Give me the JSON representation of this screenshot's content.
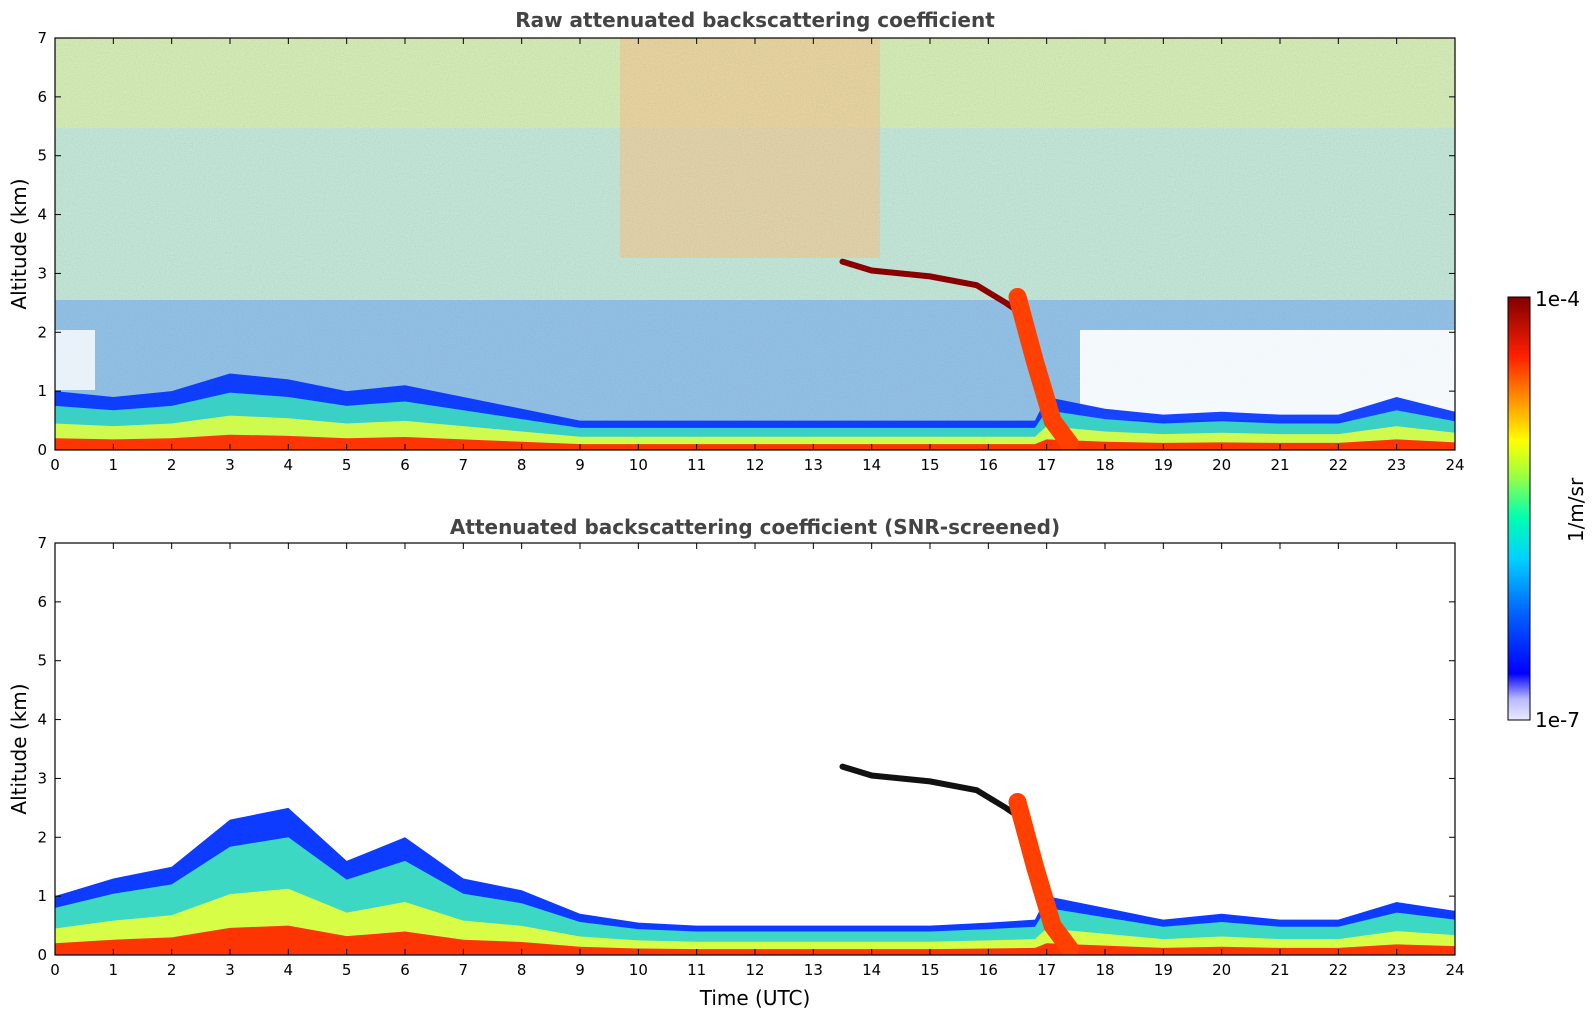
{
  "figure": {
    "xlabel": "Time (UTC)"
  },
  "chart_data": [
    {
      "type": "heatmap",
      "title": "Raw attenuated backscattering coefficient",
      "ylabel": "Altitude (km)",
      "xlim": [
        0,
        24
      ],
      "ylim": [
        0,
        7
      ],
      "xticks": [
        "0",
        "1",
        "2",
        "3",
        "4",
        "5",
        "6",
        "7",
        "8",
        "9",
        "10",
        "11",
        "12",
        "13",
        "14",
        "15",
        "16",
        "17",
        "18",
        "19",
        "20",
        "21",
        "22",
        "23",
        "24"
      ],
      "yticks": [
        "0",
        "1",
        "2",
        "3",
        "4",
        "5",
        "6",
        "7"
      ],
      "features": {
        "boundary_layer_top_km": [
          [
            0,
            1.0
          ],
          [
            1,
            0.9
          ],
          [
            2,
            1.0
          ],
          [
            3,
            1.3
          ],
          [
            4,
            1.2
          ],
          [
            5,
            1.0
          ],
          [
            6,
            1.1
          ],
          [
            7,
            0.9
          ],
          [
            8,
            0.7
          ],
          [
            9,
            0.5
          ],
          [
            10,
            0.5
          ],
          [
            11,
            0.5
          ],
          [
            12,
            0.5
          ],
          [
            13,
            0.5
          ],
          [
            14,
            0.5
          ],
          [
            15,
            0.5
          ],
          [
            16,
            0.5
          ],
          [
            16.8,
            0.5
          ],
          [
            17,
            0.9
          ],
          [
            18,
            0.7
          ],
          [
            19,
            0.6
          ],
          [
            20,
            0.65
          ],
          [
            21,
            0.6
          ],
          [
            22,
            0.6
          ],
          [
            23,
            0.9
          ],
          [
            24,
            0.65
          ]
        ],
        "cloud_layer_km": [
          [
            13.5,
            3.2
          ],
          [
            14,
            3.05
          ],
          [
            15,
            2.95
          ],
          [
            15.8,
            2.8
          ],
          [
            16.3,
            2.5
          ],
          [
            16.6,
            2.3
          ]
        ],
        "descending_layer_km": [
          [
            16.5,
            2.6
          ],
          [
            16.8,
            1.5
          ],
          [
            17.1,
            0.5
          ],
          [
            17.4,
            0.1
          ]
        ]
      }
    },
    {
      "type": "heatmap",
      "title": "Attenuated backscattering coefficient (SNR-screened)",
      "ylabel": "Altitude (km)",
      "xlabel": "Time (UTC)",
      "xlim": [
        0,
        24
      ],
      "ylim": [
        0,
        7
      ],
      "xticks": [
        "0",
        "1",
        "2",
        "3",
        "4",
        "5",
        "6",
        "7",
        "8",
        "9",
        "10",
        "11",
        "12",
        "13",
        "14",
        "15",
        "16",
        "17",
        "18",
        "19",
        "20",
        "21",
        "22",
        "23",
        "24"
      ],
      "yticks": [
        "0",
        "1",
        "2",
        "3",
        "4",
        "5",
        "6",
        "7"
      ],
      "features": {
        "screened_top_km": [
          [
            0,
            1.0
          ],
          [
            1,
            1.3
          ],
          [
            2,
            1.5
          ],
          [
            3,
            2.3
          ],
          [
            4,
            2.5
          ],
          [
            5,
            1.6
          ],
          [
            6,
            2.0
          ],
          [
            7,
            1.3
          ],
          [
            8,
            1.1
          ],
          [
            9,
            0.7
          ],
          [
            10,
            0.55
          ],
          [
            11,
            0.5
          ],
          [
            12,
            0.5
          ],
          [
            13,
            0.5
          ],
          [
            14,
            0.5
          ],
          [
            15,
            0.5
          ],
          [
            16,
            0.55
          ],
          [
            16.8,
            0.6
          ],
          [
            17,
            1.0
          ],
          [
            18,
            0.8
          ],
          [
            19,
            0.6
          ],
          [
            20,
            0.7
          ],
          [
            21,
            0.6
          ],
          [
            22,
            0.6
          ],
          [
            23,
            0.9
          ],
          [
            24,
            0.75
          ]
        ]
      }
    }
  ],
  "colorbar": {
    "label": "1/m/sr",
    "max_label": "1e-4",
    "min_label": "1e-7",
    "colors": [
      "#eaeaff",
      "#c8c8ff",
      "#9a9aff",
      "#0000ff",
      "#0050ff",
      "#00a0ff",
      "#00e0e0",
      "#40ffb0",
      "#b0ff40",
      "#ffff00",
      "#ffb000",
      "#ff6000",
      "#ff0000",
      "#c00000",
      "#800000"
    ]
  }
}
